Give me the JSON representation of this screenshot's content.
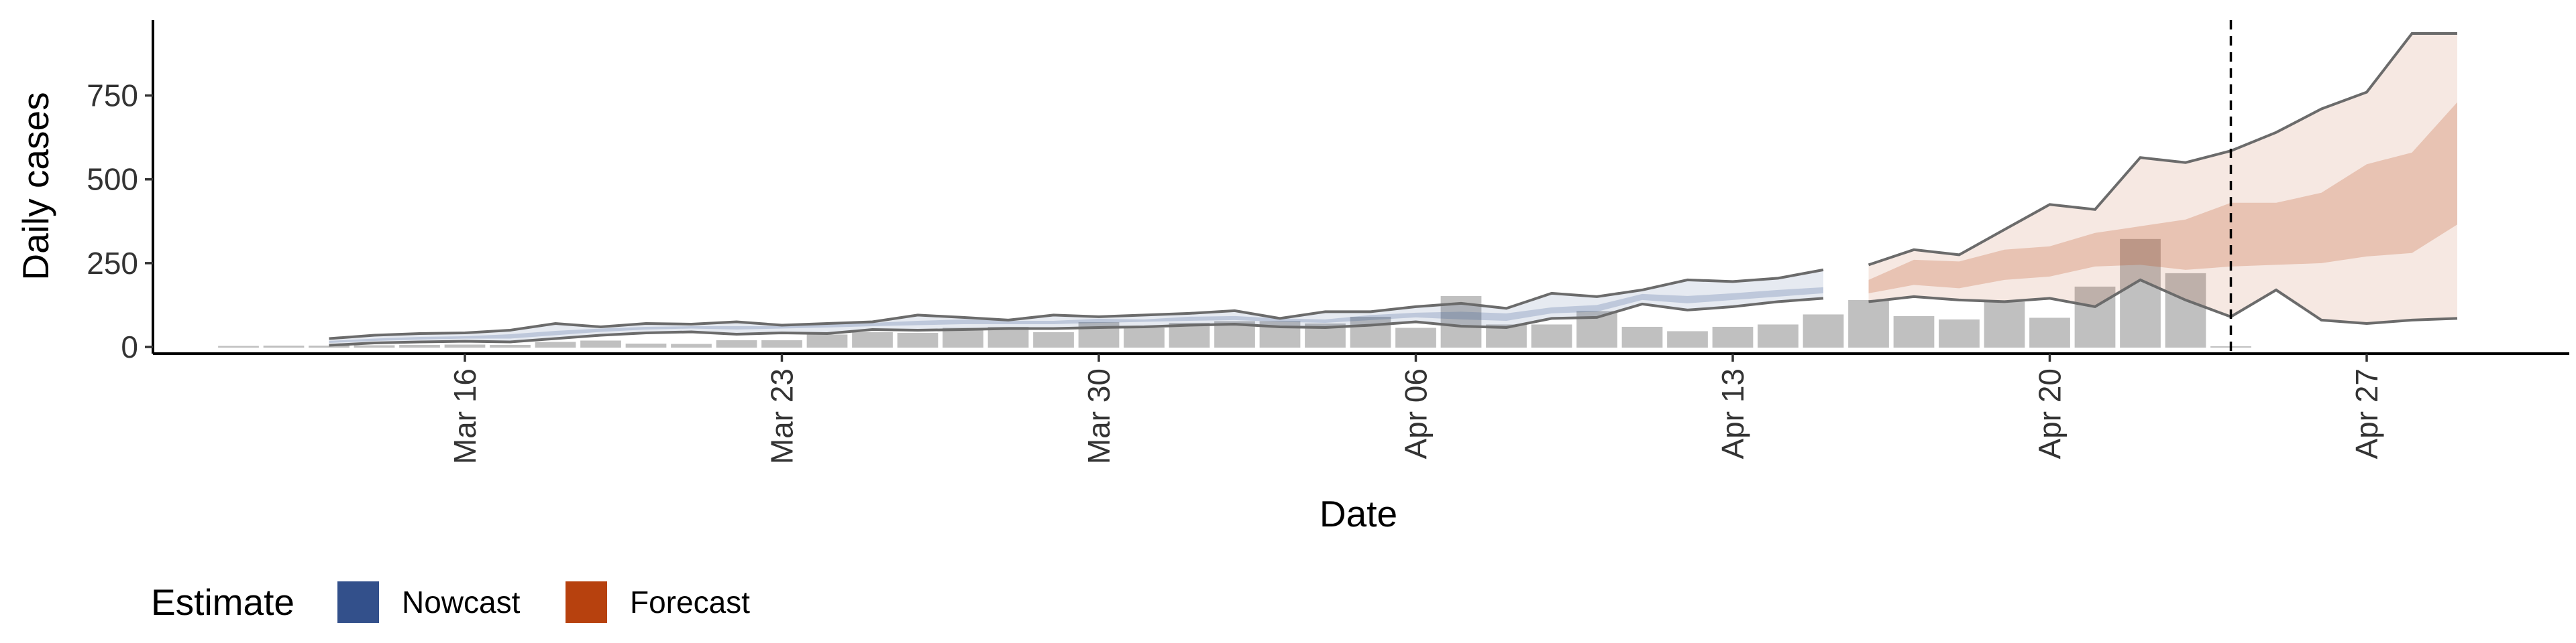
{
  "chart_data": {
    "type": "bar",
    "xlabel": "Date",
    "ylabel": "Daily cases",
    "x_range": [
      "2020-03-09",
      "2020-05-02"
    ],
    "ylim": [
      -20,
      975
    ],
    "y_ticks": [
      0,
      250,
      500,
      750
    ],
    "y_tick_labels": [
      "0",
      "250",
      "500",
      "750"
    ],
    "x_ticks": [
      "2020-03-16",
      "2020-03-23",
      "2020-03-30",
      "2020-04-06",
      "2020-04-13",
      "2020-04-20",
      "2020-04-27"
    ],
    "x_tick_labels": [
      "Mar 16",
      "Mar 23",
      "Mar 30",
      "Apr 06",
      "Apr 13",
      "Apr 20",
      "Apr 27"
    ],
    "grid": false,
    "reference_line": {
      "x": "2020-04-24",
      "style": "dashed"
    },
    "bars": {
      "dates": [
        "2020-03-11",
        "2020-03-12",
        "2020-03-13",
        "2020-03-14",
        "2020-03-15",
        "2020-03-16",
        "2020-03-17",
        "2020-03-18",
        "2020-03-19",
        "2020-03-20",
        "2020-03-21",
        "2020-03-22",
        "2020-03-23",
        "2020-03-24",
        "2020-03-25",
        "2020-03-26",
        "2020-03-27",
        "2020-03-28",
        "2020-03-29",
        "2020-03-30",
        "2020-03-31",
        "2020-04-01",
        "2020-04-02",
        "2020-04-03",
        "2020-04-04",
        "2020-04-05",
        "2020-04-06",
        "2020-04-07",
        "2020-04-08",
        "2020-04-09",
        "2020-04-10",
        "2020-04-11",
        "2020-04-12",
        "2020-04-13",
        "2020-04-14",
        "2020-04-15",
        "2020-04-16",
        "2020-04-17",
        "2020-04-18",
        "2020-04-19",
        "2020-04-20",
        "2020-04-21",
        "2020-04-22",
        "2020-04-23",
        "2020-04-24"
      ],
      "values": [
        1,
        2,
        2,
        3,
        4,
        5,
        4,
        13,
        17,
        8,
        7,
        18,
        18,
        35,
        42,
        40,
        55,
        58,
        42,
        72,
        55,
        70,
        75,
        75,
        68,
        88,
        55,
        150,
        65,
        65,
        105,
        58,
        45,
        58,
        65,
        95,
        138,
        90,
        80,
        133,
        85,
        178,
        320,
        218,
        0
      ]
    },
    "series": [
      {
        "name": "Nowcast",
        "color": "#33508B",
        "dates": [
          "2020-03-13",
          "2020-03-14",
          "2020-03-15",
          "2020-03-16",
          "2020-03-17",
          "2020-03-18",
          "2020-03-19",
          "2020-03-20",
          "2020-03-21",
          "2020-03-22",
          "2020-03-23",
          "2020-03-24",
          "2020-03-25",
          "2020-03-26",
          "2020-03-27",
          "2020-03-28",
          "2020-03-29",
          "2020-03-30",
          "2020-03-31",
          "2020-04-01",
          "2020-04-02",
          "2020-04-03",
          "2020-04-04",
          "2020-04-05",
          "2020-04-06",
          "2020-04-07",
          "2020-04-08",
          "2020-04-09",
          "2020-04-10",
          "2020-04-11",
          "2020-04-12",
          "2020-04-13",
          "2020-04-14",
          "2020-04-15"
        ],
        "lower90": [
          5,
          12,
          15,
          17,
          15,
          25,
          35,
          42,
          45,
          38,
          42,
          40,
          52,
          50,
          52,
          55,
          55,
          58,
          60,
          65,
          68,
          60,
          58,
          65,
          75,
          62,
          58,
          85,
          88,
          128,
          110,
          120,
          135,
          145
        ],
        "lower50": [
          12,
          18,
          22,
          25,
          25,
          35,
          45,
          52,
          55,
          52,
          55,
          58,
          62,
          65,
          68,
          68,
          68,
          72,
          75,
          78,
          80,
          75,
          72,
          80,
          88,
          82,
          78,
          100,
          105,
          140,
          130,
          140,
          150,
          160
        ],
        "upper50": [
          18,
          25,
          30,
          32,
          38,
          48,
          55,
          60,
          62,
          62,
          62,
          68,
          72,
          78,
          82,
          78,
          78,
          84,
          82,
          90,
          92,
          85,
          82,
          95,
          102,
          105,
          100,
          118,
          125,
          158,
          152,
          160,
          170,
          178
        ],
        "upper90": [
          25,
          35,
          40,
          42,
          50,
          70,
          60,
          70,
          68,
          75,
          65,
          70,
          75,
          95,
          88,
          80,
          95,
          90,
          95,
          100,
          108,
          85,
          105,
          105,
          120,
          130,
          115,
          160,
          150,
          170,
          200,
          195,
          205,
          230
        ]
      },
      {
        "name": "Forecast",
        "color": "#B7410E",
        "dates": [
          "2020-04-16",
          "2020-04-17",
          "2020-04-18",
          "2020-04-19",
          "2020-04-20",
          "2020-04-21",
          "2020-04-22",
          "2020-04-23",
          "2020-04-24",
          "2020-04-25",
          "2020-04-26",
          "2020-04-27",
          "2020-04-28",
          "2020-04-29"
        ],
        "lower90": [
          135,
          150,
          140,
          135,
          145,
          120,
          200,
          140,
          90,
          170,
          80,
          70,
          80,
          85
        ],
        "lower50": [
          160,
          185,
          175,
          200,
          210,
          240,
          245,
          230,
          240,
          245,
          250,
          270,
          280,
          365
        ],
        "upper50": [
          200,
          260,
          255,
          290,
          300,
          340,
          360,
          380,
          430,
          430,
          460,
          545,
          580,
          730
        ],
        "upper90": [
          245,
          290,
          275,
          350,
          425,
          410,
          565,
          550,
          585,
          640,
          710,
          760,
          935,
          935
        ]
      }
    ],
    "legend": {
      "position": "bottom-left",
      "title": "Estimate",
      "entries": [
        {
          "label": "Nowcast",
          "color": "#33508B"
        },
        {
          "label": "Forecast",
          "color": "#B7410E"
        }
      ]
    }
  }
}
